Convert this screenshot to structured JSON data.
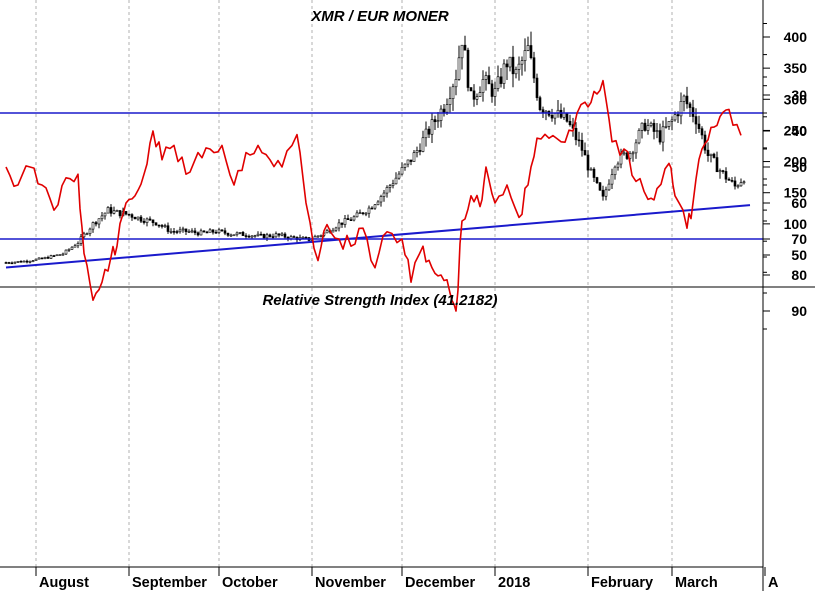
{
  "chart_data": [
    {
      "type": "candlestick",
      "title": "XMR / EUR MONER",
      "ylim": [
        0,
        450
      ],
      "yticks": [
        50,
        100,
        150,
        200,
        250,
        300,
        350,
        400
      ],
      "grid": "vertical dashed at month starts",
      "trendline": {
        "from": {
          "x": "2017-07-22",
          "y": 30
        },
        "to": {
          "x": "2018-03-27",
          "y": 130
        }
      },
      "close_series": [
        [
          "2017-07-22",
          38
        ],
        [
          "2017-07-28",
          40
        ],
        [
          "2017-08-03",
          44
        ],
        [
          "2017-08-10",
          52
        ],
        [
          "2017-08-15",
          70
        ],
        [
          "2017-08-20",
          100
        ],
        [
          "2017-08-25",
          122
        ],
        [
          "2017-08-28",
          118
        ],
        [
          "2017-09-01",
          115
        ],
        [
          "2017-09-05",
          108
        ],
        [
          "2017-09-10",
          102
        ],
        [
          "2017-09-15",
          88
        ],
        [
          "2017-09-20",
          88
        ],
        [
          "2017-09-25",
          85
        ],
        [
          "2017-09-30",
          88
        ],
        [
          "2017-10-05",
          84
        ],
        [
          "2017-10-10",
          83
        ],
        [
          "2017-10-15",
          80
        ],
        [
          "2017-10-20",
          82
        ],
        [
          "2017-10-25",
          78
        ],
        [
          "2017-10-31",
          75
        ],
        [
          "2017-11-05",
          85
        ],
        [
          "2017-11-10",
          100
        ],
        [
          "2017-11-15",
          110
        ],
        [
          "2017-11-20",
          125
        ],
        [
          "2017-11-25",
          150
        ],
        [
          "2017-11-30",
          180
        ],
        [
          "2017-12-05",
          210
        ],
        [
          "2017-12-10",
          250
        ],
        [
          "2017-12-15",
          290
        ],
        [
          "2017-12-19",
          340
        ],
        [
          "2017-12-21",
          400
        ],
        [
          "2017-12-24",
          300
        ],
        [
          "2017-12-28",
          330
        ],
        [
          "2018-01-01",
          310
        ],
        [
          "2018-01-05",
          360
        ],
        [
          "2018-01-08",
          340
        ],
        [
          "2018-01-12",
          380
        ],
        [
          "2018-01-16",
          290
        ],
        [
          "2018-01-20",
          280
        ],
        [
          "2018-01-25",
          265
        ],
        [
          "2018-01-30",
          220
        ],
        [
          "2018-02-02",
          180
        ],
        [
          "2018-02-06",
          140
        ],
        [
          "2018-02-10",
          200
        ],
        [
          "2018-02-15",
          215
        ],
        [
          "2018-02-20",
          260
        ],
        [
          "2018-02-25",
          240
        ],
        [
          "2018-03-01",
          265
        ],
        [
          "2018-03-05",
          300
        ],
        [
          "2018-03-09",
          270
        ],
        [
          "2018-03-13",
          210
        ],
        [
          "2018-03-18",
          180
        ],
        [
          "2018-03-22",
          160
        ],
        [
          "2018-03-25",
          175
        ]
      ]
    },
    {
      "type": "line",
      "title": "Relative Strength Index (41.2182)",
      "ylim": [
        20,
        95
      ],
      "yticks": [
        30,
        40,
        50,
        60,
        70,
        80,
        90
      ],
      "hlines": [
        70,
        35
      ],
      "series": [
        {
          "color": "#e00000",
          "points": [
            [
              "2017-07-22",
              50
            ],
            [
              "2017-07-26",
              55
            ],
            [
              "2017-07-30",
              50
            ],
            [
              "2017-08-03",
              55
            ],
            [
              "2017-08-07",
              62
            ],
            [
              "2017-08-11",
              53
            ],
            [
              "2017-08-15",
              52
            ],
            [
              "2017-08-17",
              74
            ],
            [
              "2017-08-20",
              87
            ],
            [
              "2017-08-23",
              82
            ],
            [
              "2017-08-26",
              75
            ],
            [
              "2017-08-28",
              72
            ],
            [
              "2017-08-31",
              60
            ],
            [
              "2017-09-03",
              58
            ],
            [
              "2017-09-06",
              52
            ],
            [
              "2017-09-09",
              40
            ],
            [
              "2017-09-12",
              48
            ],
            [
              "2017-09-16",
              44
            ],
            [
              "2017-09-20",
              52
            ],
            [
              "2017-09-24",
              46
            ],
            [
              "2017-09-28",
              45
            ],
            [
              "2017-10-02",
              44
            ],
            [
              "2017-10-06",
              55
            ],
            [
              "2017-10-10",
              46
            ],
            [
              "2017-10-14",
              44
            ],
            [
              "2017-10-18",
              48
            ],
            [
              "2017-10-22",
              50
            ],
            [
              "2017-10-27",
              41
            ],
            [
              "2017-10-30",
              60
            ],
            [
              "2017-11-03",
              76
            ],
            [
              "2017-11-06",
              66
            ],
            [
              "2017-11-10",
              70
            ],
            [
              "2017-11-14",
              72
            ],
            [
              "2017-11-18",
              67
            ],
            [
              "2017-11-22",
              78
            ],
            [
              "2017-11-26",
              68
            ],
            [
              "2017-12-01",
              70
            ],
            [
              "2017-12-04",
              82
            ],
            [
              "2017-12-08",
              72
            ],
            [
              "2017-12-11",
              78
            ],
            [
              "2017-12-14",
              80
            ],
            [
              "2017-12-17",
              85
            ],
            [
              "2017-12-19",
              90
            ],
            [
              "2017-12-21",
              65
            ],
            [
              "2017-12-24",
              58
            ],
            [
              "2017-12-27",
              61
            ],
            [
              "2017-12-29",
              50
            ],
            [
              "2018-01-01",
              60
            ],
            [
              "2018-01-05",
              55
            ],
            [
              "2018-01-09",
              64
            ],
            [
              "2018-01-12",
              55
            ],
            [
              "2018-01-15",
              42
            ],
            [
              "2018-01-19",
              42
            ],
            [
              "2018-01-23",
              43
            ],
            [
              "2018-01-27",
              40
            ],
            [
              "2018-01-31",
              32
            ],
            [
              "2018-02-03",
              29
            ],
            [
              "2018-02-06",
              26
            ],
            [
              "2018-02-09",
              43
            ],
            [
              "2018-02-13",
              45
            ],
            [
              "2018-02-17",
              54
            ],
            [
              "2018-02-21",
              59
            ],
            [
              "2018-02-24",
              56
            ],
            [
              "2018-02-28",
              49
            ],
            [
              "2018-03-02",
              58
            ],
            [
              "2018-03-06",
              67
            ],
            [
              "2018-03-08",
              60
            ],
            [
              "2018-03-11",
              45
            ],
            [
              "2018-03-14",
              39
            ],
            [
              "2018-03-17",
              36
            ],
            [
              "2018-03-20",
              34
            ],
            [
              "2018-03-24",
              41.2182
            ]
          ]
        }
      ]
    }
  ],
  "x_axis": {
    "start": "2017-07-20",
    "end": "2018-04-06",
    "months": [
      {
        "label": "August",
        "date": "2017-08-01"
      },
      {
        "label": "September",
        "date": "2017-09-01"
      },
      {
        "label": "October",
        "date": "2017-10-01"
      },
      {
        "label": "November",
        "date": "2017-11-01"
      },
      {
        "label": "December",
        "date": "2017-12-01"
      },
      {
        "label": "2018",
        "date": "2018-01-01"
      },
      {
        "label": "February",
        "date": "2018-02-01"
      },
      {
        "label": "March",
        "date": "2018-03-01"
      },
      {
        "label": "A",
        "date": "2018-04-01"
      }
    ]
  },
  "colors": {
    "candles": "#000000",
    "trendline": "#1a1acc",
    "rsi": "#e00000",
    "rsi_levels": "#1a1acc",
    "grid": "#b0b0b0"
  }
}
